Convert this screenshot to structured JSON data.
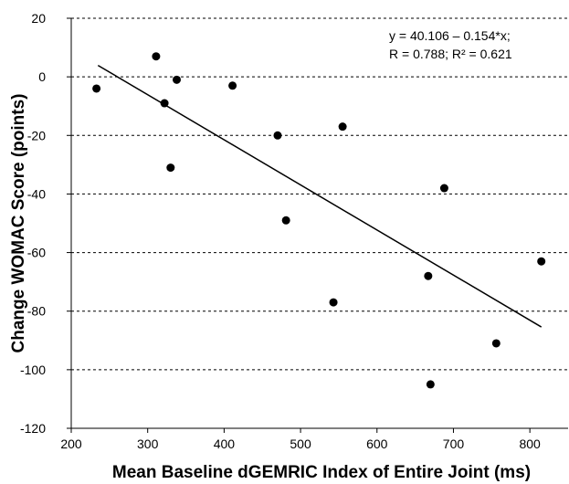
{
  "chart_data": {
    "type": "scatter",
    "title": "",
    "xlabel": "Mean Baseline dGEMRIC Index of Entire Joint (ms)",
    "ylabel": "Change WOMAC Score (points)",
    "xlim": [
      200,
      850
    ],
    "ylim": [
      -120,
      20
    ],
    "xticks": [
      200,
      300,
      400,
      500,
      600,
      700,
      800
    ],
    "yticks": [
      -120,
      -100,
      -80,
      -60,
      -40,
      -20,
      0,
      20
    ],
    "grid": "horizontal-dashed",
    "points": [
      {
        "x": 233,
        "y": -4
      },
      {
        "x": 311,
        "y": 7
      },
      {
        "x": 322,
        "y": -9
      },
      {
        "x": 330,
        "y": -31
      },
      {
        "x": 338,
        "y": -1
      },
      {
        "x": 411,
        "y": -3
      },
      {
        "x": 470,
        "y": -20
      },
      {
        "x": 481,
        "y": -49
      },
      {
        "x": 543,
        "y": -77
      },
      {
        "x": 555,
        "y": -17
      },
      {
        "x": 667,
        "y": -68
      },
      {
        "x": 670,
        "y": -105
      },
      {
        "x": 688,
        "y": -38
      },
      {
        "x": 756,
        "y": -91
      },
      {
        "x": 815,
        "y": -63
      }
    ],
    "trendline": {
      "intercept": 40.106,
      "slope": -0.154,
      "x_range": [
        235,
        815
      ]
    },
    "annotation": {
      "line1": "y = 40.106 – 0.154*x;",
      "line2": "R = 0.788; R² = 0.621"
    },
    "colors": {
      "points": "#000000",
      "line": "#000000",
      "grid": "#000000"
    }
  }
}
